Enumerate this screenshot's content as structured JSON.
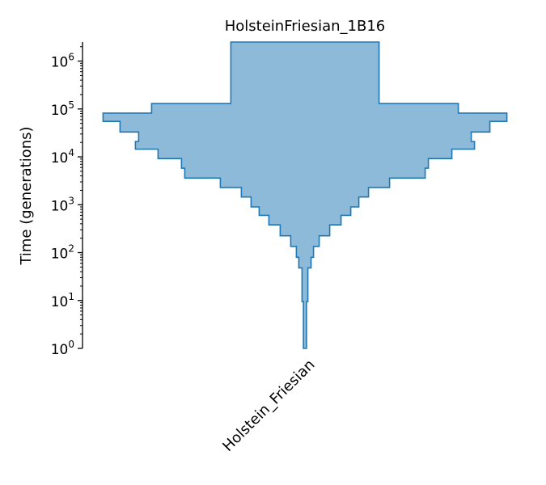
{
  "chart_data": {
    "type": "area",
    "title": "HolsteinFriesian_1B16",
    "ylabel": "Time (generations)",
    "yscale": "log",
    "ylim": [
      1,
      2500000
    ],
    "y_ticks": [
      {
        "base": "10",
        "exp": "0"
      },
      {
        "base": "10",
        "exp": "1"
      },
      {
        "base": "10",
        "exp": "2"
      },
      {
        "base": "10",
        "exp": "3"
      },
      {
        "base": "10",
        "exp": "4"
      },
      {
        "base": "10",
        "exp": "5"
      },
      {
        "base": "10",
        "exp": "6"
      }
    ],
    "categories": [
      "Holstein_Friesian"
    ],
    "fill_color": "#8ebad9",
    "edge_color": "#1f77b4",
    "series": [
      {
        "deme": "Holstein_Friesian",
        "max_halfwidth": 250,
        "profile": [
          {
            "time": 1,
            "halfwidth": 1.9
          },
          {
            "time": 9.5,
            "halfwidth": 1.9
          },
          {
            "time": 9.5,
            "halfwidth": 3.6
          },
          {
            "time": 48,
            "halfwidth": 3.6
          },
          {
            "time": 48,
            "halfwidth": 7.6
          },
          {
            "time": 80,
            "halfwidth": 7.6
          },
          {
            "time": 80,
            "halfwidth": 10.6
          },
          {
            "time": 135,
            "halfwidth": 10.6
          },
          {
            "time": 135,
            "halfwidth": 17.6
          },
          {
            "time": 225,
            "halfwidth": 17.6
          },
          {
            "time": 225,
            "halfwidth": 30.6
          },
          {
            "time": 380,
            "halfwidth": 30.6
          },
          {
            "time": 380,
            "halfwidth": 44.6
          },
          {
            "time": 600,
            "halfwidth": 44.6
          },
          {
            "time": 600,
            "halfwidth": 56.6
          },
          {
            "time": 900,
            "halfwidth": 56.6
          },
          {
            "time": 900,
            "halfwidth": 66.6
          },
          {
            "time": 1450,
            "halfwidth": 66.6
          },
          {
            "time": 1450,
            "halfwidth": 78.6
          },
          {
            "time": 2300,
            "halfwidth": 78.6
          },
          {
            "time": 2300,
            "halfwidth": 104.6
          },
          {
            "time": 3600,
            "halfwidth": 104.6
          },
          {
            "time": 3600,
            "halfwidth": 148.6
          },
          {
            "time": 5800,
            "halfwidth": 148.6
          },
          {
            "time": 5800,
            "halfwidth": 152.6
          },
          {
            "time": 9200,
            "halfwidth": 152.6
          },
          {
            "time": 9200,
            "halfwidth": 181.6
          },
          {
            "time": 14500,
            "halfwidth": 181.6
          },
          {
            "time": 14500,
            "halfwidth": 209.6
          },
          {
            "time": 21000,
            "halfwidth": 209.6
          },
          {
            "time": 21000,
            "halfwidth": 205.6
          },
          {
            "time": 33000,
            "halfwidth": 205.6
          },
          {
            "time": 33000,
            "halfwidth": 228.6
          },
          {
            "time": 55000,
            "halfwidth": 228.6
          },
          {
            "time": 55000,
            "halfwidth": 249.6
          },
          {
            "time": 82000,
            "halfwidth": 249.6
          },
          {
            "time": 82000,
            "halfwidth": 189.6
          },
          {
            "time": 130000,
            "halfwidth": 189.6
          },
          {
            "time": 130000,
            "halfwidth": 91.6
          },
          {
            "time": 2500000,
            "halfwidth": 91.6
          }
        ]
      }
    ]
  }
}
